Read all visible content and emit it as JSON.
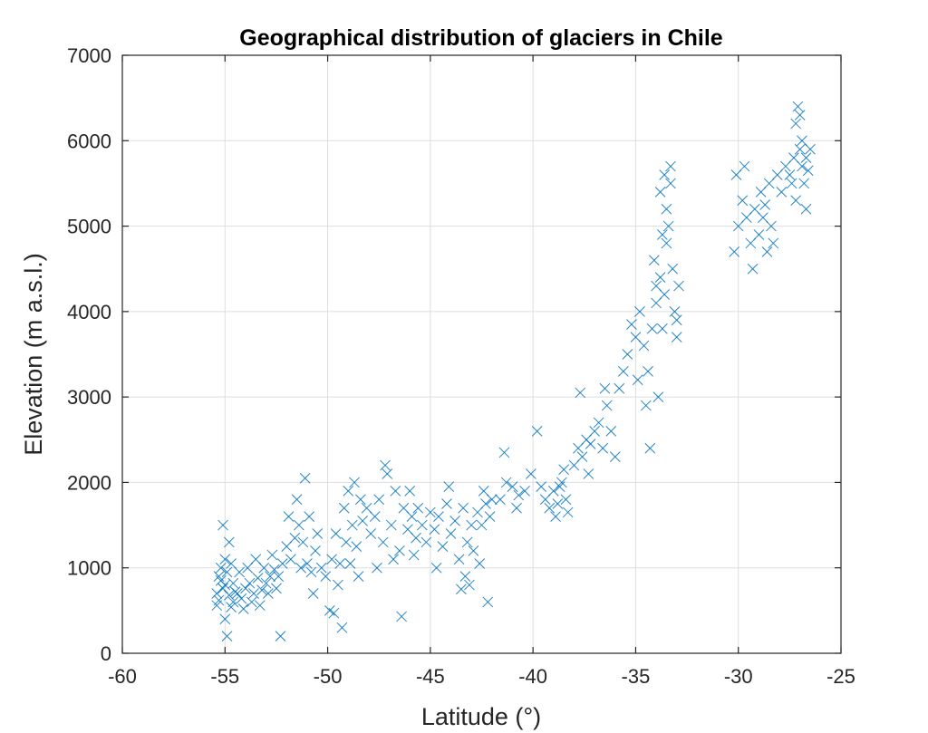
{
  "chart_data": {
    "type": "scatter",
    "title": "Geographical distribution of glaciers in Chile",
    "xlabel": "Latitude (°)",
    "ylabel": "Elevation (m a.s.l.)",
    "xlim": [
      -60,
      -25
    ],
    "ylim": [
      0,
      7000
    ],
    "xticks": [
      -60,
      -55,
      -50,
      -45,
      -40,
      -35,
      -30,
      -25
    ],
    "yticks": [
      0,
      1000,
      2000,
      3000,
      4000,
      5000,
      6000,
      7000
    ],
    "grid": true,
    "marker": "x",
    "color": "#0072BD",
    "series": [
      {
        "points": [
          [
            -55.4,
            700
          ],
          [
            -55.3,
            620
          ],
          [
            -55.2,
            850
          ],
          [
            -55.1,
            760
          ],
          [
            -55.0,
            1100
          ],
          [
            -54.9,
            950
          ],
          [
            -54.8,
            680
          ],
          [
            -54.7,
            540
          ],
          [
            -54.6,
            820
          ],
          [
            -54.5,
            720
          ],
          [
            -55.4,
            560
          ],
          [
            -55.2,
            1000
          ],
          [
            -55.0,
            400
          ],
          [
            -54.8,
            1300
          ],
          [
            -55.1,
            1500
          ],
          [
            -54.9,
            200
          ],
          [
            -55.3,
            900
          ],
          [
            -54.7,
            1050
          ],
          [
            -54.6,
            600
          ],
          [
            -55.0,
            800
          ],
          [
            -54.4,
            700
          ],
          [
            -54.2,
            640
          ],
          [
            -54.0,
            760
          ],
          [
            -53.8,
            820
          ],
          [
            -53.6,
            700
          ],
          [
            -53.4,
            880
          ],
          [
            -53.2,
            740
          ],
          [
            -53.0,
            820
          ],
          [
            -52.8,
            900
          ],
          [
            -52.6,
            980
          ],
          [
            -54.3,
            950
          ],
          [
            -54.1,
            520
          ],
          [
            -53.9,
            1000
          ],
          [
            -53.7,
            600
          ],
          [
            -53.5,
            1100
          ],
          [
            -53.3,
            560
          ],
          [
            -53.1,
            1000
          ],
          [
            -52.9,
            700
          ],
          [
            -52.7,
            1150
          ],
          [
            -52.5,
            760
          ],
          [
            -52.4,
            900
          ],
          [
            -52.2,
            1050
          ],
          [
            -52.0,
            1250
          ],
          [
            -51.8,
            1100
          ],
          [
            -51.6,
            1350
          ],
          [
            -51.4,
            1500
          ],
          [
            -51.2,
            1300
          ],
          [
            -51.0,
            1050
          ],
          [
            -50.8,
            950
          ],
          [
            -50.6,
            1200
          ],
          [
            -52.3,
            200
          ],
          [
            -51.9,
            1600
          ],
          [
            -51.5,
            1800
          ],
          [
            -51.3,
            1000
          ],
          [
            -51.1,
            2050
          ],
          [
            -50.9,
            1600
          ],
          [
            -50.7,
            700
          ],
          [
            -50.5,
            1400
          ],
          [
            -50.3,
            1000
          ],
          [
            -50.1,
            900
          ],
          [
            -49.9,
            500
          ],
          [
            -49.7,
            470
          ],
          [
            -49.8,
            1100
          ],
          [
            -49.6,
            1400
          ],
          [
            -49.4,
            1050
          ],
          [
            -49.2,
            1700
          ],
          [
            -49.0,
            1900
          ],
          [
            -48.8,
            1500
          ],
          [
            -48.6,
            1250
          ],
          [
            -48.4,
            1800
          ],
          [
            -49.5,
            800
          ],
          [
            -49.3,
            300
          ],
          [
            -49.1,
            1300
          ],
          [
            -48.9,
            1050
          ],
          [
            -48.7,
            2000
          ],
          [
            -48.5,
            900
          ],
          [
            -48.3,
            1550
          ],
          [
            -48.1,
            1700
          ],
          [
            -47.9,
            1400
          ],
          [
            -47.7,
            1600
          ],
          [
            -47.5,
            1800
          ],
          [
            -47.3,
            1300
          ],
          [
            -47.1,
            2100
          ],
          [
            -46.9,
            1500
          ],
          [
            -46.7,
            1900
          ],
          [
            -46.5,
            1200
          ],
          [
            -46.3,
            1700
          ],
          [
            -46.1,
            1450
          ],
          [
            -45.9,
            1600
          ],
          [
            -45.7,
            1350
          ],
          [
            -47.6,
            1000
          ],
          [
            -47.2,
            2200
          ],
          [
            -46.8,
            1100
          ],
          [
            -46.4,
            430
          ],
          [
            -46.0,
            1900
          ],
          [
            -45.8,
            1150
          ],
          [
            -45.6,
            1700
          ],
          [
            -45.4,
            1500
          ],
          [
            -45.2,
            1300
          ],
          [
            -45.0,
            1650
          ],
          [
            -44.8,
            1450
          ],
          [
            -44.6,
            1600
          ],
          [
            -44.4,
            1250
          ],
          [
            -44.2,
            1750
          ],
          [
            -44.0,
            1400
          ],
          [
            -43.8,
            1550
          ],
          [
            -43.6,
            1100
          ],
          [
            -43.4,
            1700
          ],
          [
            -43.2,
            1300
          ],
          [
            -43.0,
            1500
          ],
          [
            -44.7,
            1000
          ],
          [
            -44.1,
            1950
          ],
          [
            -43.5,
            750
          ],
          [
            -43.3,
            900
          ],
          [
            -43.1,
            800
          ],
          [
            -42.9,
            1200
          ],
          [
            -42.7,
            1650
          ],
          [
            -42.5,
            1500
          ],
          [
            -42.3,
            1750
          ],
          [
            -42.1,
            1600
          ],
          [
            -42.2,
            600
          ],
          [
            -42.4,
            1900
          ],
          [
            -42.6,
            1050
          ],
          [
            -42.0,
            1800
          ],
          [
            -41.6,
            1800
          ],
          [
            -41.3,
            2000
          ],
          [
            -41.0,
            1950
          ],
          [
            -40.7,
            1850
          ],
          [
            -40.4,
            1900
          ],
          [
            -40.1,
            2100
          ],
          [
            -41.4,
            2350
          ],
          [
            -40.8,
            1700
          ],
          [
            -39.8,
            2600
          ],
          [
            -39.6,
            1950
          ],
          [
            -39.4,
            1800
          ],
          [
            -39.2,
            1700
          ],
          [
            -39.0,
            1900
          ],
          [
            -38.8,
            1750
          ],
          [
            -38.6,
            2000
          ],
          [
            -38.4,
            1800
          ],
          [
            -38.9,
            1600
          ],
          [
            -38.7,
            1950
          ],
          [
            -38.5,
            2150
          ],
          [
            -38.3,
            1650
          ],
          [
            -38.0,
            2200
          ],
          [
            -37.8,
            2400
          ],
          [
            -37.6,
            2300
          ],
          [
            -37.4,
            2500
          ],
          [
            -37.2,
            2450
          ],
          [
            -37.0,
            2600
          ],
          [
            -37.7,
            3050
          ],
          [
            -37.3,
            2100
          ],
          [
            -36.8,
            2700
          ],
          [
            -36.6,
            2400
          ],
          [
            -36.4,
            2900
          ],
          [
            -36.2,
            2600
          ],
          [
            -36.0,
            2300
          ],
          [
            -36.5,
            3100
          ],
          [
            -35.8,
            3100
          ],
          [
            -35.6,
            3300
          ],
          [
            -35.4,
            3500
          ],
          [
            -35.2,
            3850
          ],
          [
            -35.0,
            3700
          ],
          [
            -34.8,
            4000
          ],
          [
            -34.6,
            3600
          ],
          [
            -34.4,
            3300
          ],
          [
            -34.2,
            3800
          ],
          [
            -34.0,
            4100
          ],
          [
            -33.8,
            4400
          ],
          [
            -33.6,
            4200
          ],
          [
            -34.9,
            3200
          ],
          [
            -34.5,
            2900
          ],
          [
            -34.3,
            2400
          ],
          [
            -34.1,
            4600
          ],
          [
            -33.9,
            3000
          ],
          [
            -33.7,
            4900
          ],
          [
            -33.5,
            5200
          ],
          [
            -33.3,
            5700
          ],
          [
            -33.1,
            4000
          ],
          [
            -33.0,
            3700
          ],
          [
            -33.4,
            5000
          ],
          [
            -33.2,
            4500
          ],
          [
            -32.9,
            4300
          ],
          [
            -33.6,
            5600
          ],
          [
            -33.8,
            5400
          ],
          [
            -34.0,
            4300
          ],
          [
            -33.3,
            5500
          ],
          [
            -33.0,
            3900
          ],
          [
            -33.5,
            4800
          ],
          [
            -33.7,
            3800
          ],
          [
            -30.1,
            5600
          ],
          [
            -30.0,
            5000
          ],
          [
            -29.8,
            5300
          ],
          [
            -29.6,
            5100
          ],
          [
            -29.4,
            4800
          ],
          [
            -29.2,
            5200
          ],
          [
            -29.0,
            4900
          ],
          [
            -28.8,
            5100
          ],
          [
            -28.6,
            4700
          ],
          [
            -28.4,
            5000
          ],
          [
            -30.2,
            4700
          ],
          [
            -29.7,
            5700
          ],
          [
            -29.3,
            4500
          ],
          [
            -28.9,
            5400
          ],
          [
            -28.7,
            5250
          ],
          [
            -28.5,
            5500
          ],
          [
            -28.3,
            4800
          ],
          [
            -28.1,
            5600
          ],
          [
            -27.9,
            5400
          ],
          [
            -27.7,
            5700
          ],
          [
            -27.5,
            5600
          ],
          [
            -27.3,
            5800
          ],
          [
            -27.2,
            6200
          ],
          [
            -27.1,
            6400
          ],
          [
            -27.0,
            5900
          ],
          [
            -26.9,
            5700
          ],
          [
            -26.8,
            5500
          ],
          [
            -26.7,
            5800
          ],
          [
            -26.6,
            5650
          ],
          [
            -26.5,
            5900
          ],
          [
            -27.2,
            5300
          ],
          [
            -27.0,
            6300
          ],
          [
            -26.9,
            6000
          ],
          [
            -26.7,
            5200
          ],
          [
            -27.4,
            5500
          ]
        ]
      }
    ]
  }
}
